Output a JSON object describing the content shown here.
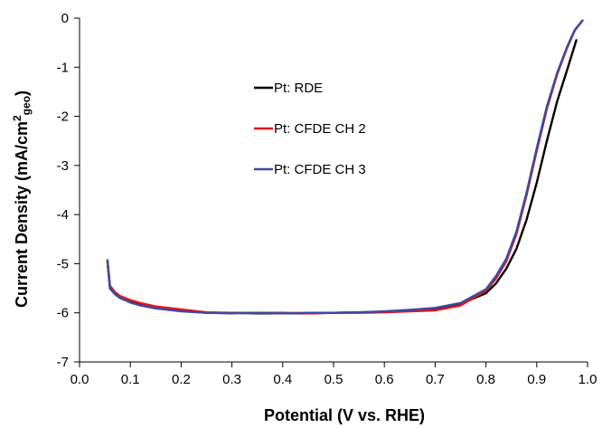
{
  "chart_data": {
    "type": "line",
    "xlabel": "Potential (V vs. RHE)",
    "ylabel": {
      "main": "Current Density (mA/cm",
      "sup": "2",
      "sub": "geo",
      "close": ")"
    },
    "xlim": [
      0.0,
      1.0
    ],
    "ylim": [
      -7,
      0
    ],
    "x_ticks": [
      0.0,
      0.1,
      0.2,
      0.3,
      0.4,
      0.5,
      0.6,
      0.7,
      0.8,
      0.9,
      1.0
    ],
    "x_tick_labels": [
      "0.0",
      "0.1",
      "0.2",
      "0.3",
      "0.4",
      "0.5",
      "0.6",
      "0.7",
      "0.8",
      "0.9",
      "1.0"
    ],
    "y_ticks": [
      0,
      -1,
      -2,
      -3,
      -4,
      -5,
      -6,
      -7
    ],
    "y_tick_labels": [
      "0",
      "-1",
      "-2",
      "-3",
      "-4",
      "-5",
      "-6",
      "-7"
    ],
    "grid": false,
    "legend_position": "upper-left",
    "series": [
      {
        "name": "Pt: RDE",
        "color": "#000000",
        "points": [
          [
            0.055,
            -4.95
          ],
          [
            0.06,
            -5.5
          ],
          [
            0.07,
            -5.62
          ],
          [
            0.08,
            -5.7
          ],
          [
            0.1,
            -5.78
          ],
          [
            0.12,
            -5.84
          ],
          [
            0.15,
            -5.9
          ],
          [
            0.2,
            -5.96
          ],
          [
            0.25,
            -6.0
          ],
          [
            0.3,
            -6.0
          ],
          [
            0.35,
            -6.01
          ],
          [
            0.4,
            -6.01
          ],
          [
            0.45,
            -6.01
          ],
          [
            0.5,
            -6.0
          ],
          [
            0.55,
            -5.99
          ],
          [
            0.6,
            -5.98
          ],
          [
            0.65,
            -5.96
          ],
          [
            0.7,
            -5.92
          ],
          [
            0.75,
            -5.82
          ],
          [
            0.8,
            -5.6
          ],
          [
            0.82,
            -5.4
          ],
          [
            0.84,
            -5.1
          ],
          [
            0.86,
            -4.7
          ],
          [
            0.88,
            -4.1
          ],
          [
            0.9,
            -3.35
          ],
          [
            0.92,
            -2.5
          ],
          [
            0.94,
            -1.7
          ],
          [
            0.96,
            -1.05
          ],
          [
            0.978,
            -0.45
          ]
        ]
      },
      {
        "name": "Pt: CFDE CH 2",
        "color": "#e8111d",
        "points": [
          [
            0.055,
            -4.97
          ],
          [
            0.06,
            -5.45
          ],
          [
            0.07,
            -5.58
          ],
          [
            0.08,
            -5.66
          ],
          [
            0.1,
            -5.74
          ],
          [
            0.12,
            -5.8
          ],
          [
            0.15,
            -5.87
          ],
          [
            0.2,
            -5.93
          ],
          [
            0.25,
            -5.99
          ],
          [
            0.3,
            -6.0
          ],
          [
            0.35,
            -6.0
          ],
          [
            0.4,
            -6.0
          ],
          [
            0.45,
            -6.01
          ],
          [
            0.5,
            -6.0
          ],
          [
            0.55,
            -6.0
          ],
          [
            0.6,
            -5.99
          ],
          [
            0.65,
            -5.97
          ],
          [
            0.7,
            -5.95
          ],
          [
            0.75,
            -5.85
          ],
          [
            0.8,
            -5.55
          ],
          [
            0.82,
            -5.3
          ],
          [
            0.84,
            -4.95
          ],
          [
            0.86,
            -4.4
          ],
          [
            0.88,
            -3.6
          ],
          [
            0.9,
            -2.7
          ],
          [
            0.92,
            -1.85
          ],
          [
            0.94,
            -1.15
          ],
          [
            0.96,
            -0.6
          ],
          [
            0.975,
            -0.25
          ],
          [
            0.99,
            -0.05
          ]
        ]
      },
      {
        "name": "Pt: CFDE CH 3",
        "color": "#3b4ba0",
        "points": [
          [
            0.055,
            -4.93
          ],
          [
            0.06,
            -5.48
          ],
          [
            0.07,
            -5.62
          ],
          [
            0.08,
            -5.7
          ],
          [
            0.1,
            -5.79
          ],
          [
            0.12,
            -5.85
          ],
          [
            0.15,
            -5.91
          ],
          [
            0.2,
            -5.97
          ],
          [
            0.25,
            -6.0
          ],
          [
            0.3,
            -6.01
          ],
          [
            0.35,
            -6.0
          ],
          [
            0.4,
            -6.01
          ],
          [
            0.45,
            -6.0
          ],
          [
            0.5,
            -6.0
          ],
          [
            0.55,
            -5.99
          ],
          [
            0.6,
            -5.97
          ],
          [
            0.65,
            -5.94
          ],
          [
            0.7,
            -5.9
          ],
          [
            0.75,
            -5.8
          ],
          [
            0.8,
            -5.52
          ],
          [
            0.82,
            -5.25
          ],
          [
            0.84,
            -4.9
          ],
          [
            0.86,
            -4.35
          ],
          [
            0.88,
            -3.55
          ],
          [
            0.9,
            -2.65
          ],
          [
            0.92,
            -1.8
          ],
          [
            0.94,
            -1.12
          ],
          [
            0.96,
            -0.58
          ],
          [
            0.975,
            -0.24
          ],
          [
            0.99,
            -0.05
          ]
        ]
      }
    ]
  }
}
